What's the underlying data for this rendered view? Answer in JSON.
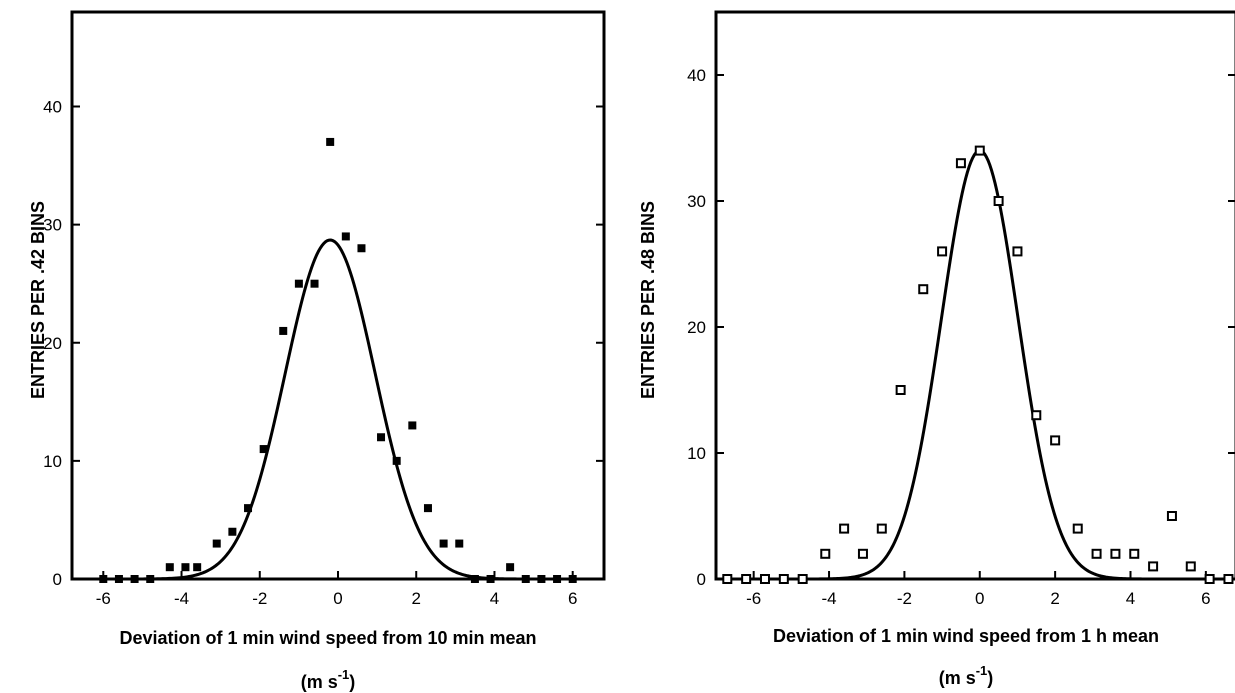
{
  "chart_data": [
    {
      "type": "scatter",
      "marker": "filled-square",
      "xlim": [
        -6.8,
        6.8
      ],
      "ylim": [
        0,
        48
      ],
      "xticks": [
        -6,
        -4,
        -2,
        0,
        2,
        4,
        6
      ],
      "yticks": [
        0,
        10,
        20,
        30,
        40
      ],
      "xtick_labels": [
        "-6",
        "-4",
        "-2",
        "0",
        "2",
        "4",
        "6"
      ],
      "ytick_labels": [
        "0",
        "10",
        "20",
        "30",
        "40"
      ],
      "ylabel": "ENTRIES PER .42 BINS",
      "xlabel": "Deviation  of  1 min wind speed from 10 min mean",
      "xlabel_unit": "(m s-1)",
      "points": [
        [
          -6.0,
          0
        ],
        [
          -5.6,
          0
        ],
        [
          -5.2,
          0
        ],
        [
          -4.8,
          0
        ],
        [
          -4.3,
          1
        ],
        [
          -3.9,
          1
        ],
        [
          -3.6,
          1
        ],
        [
          -3.1,
          3
        ],
        [
          -2.7,
          4
        ],
        [
          -2.3,
          6
        ],
        [
          -1.9,
          11
        ],
        [
          -1.4,
          21
        ],
        [
          -1.0,
          25
        ],
        [
          -0.6,
          25
        ],
        [
          -0.2,
          37
        ],
        [
          0.2,
          29
        ],
        [
          0.6,
          28
        ],
        [
          1.1,
          12
        ],
        [
          1.5,
          10
        ],
        [
          1.9,
          13
        ],
        [
          2.3,
          6
        ],
        [
          2.7,
          3
        ],
        [
          3.1,
          3
        ],
        [
          3.5,
          0
        ],
        [
          3.9,
          0
        ],
        [
          4.4,
          1
        ],
        [
          4.8,
          0
        ],
        [
          5.2,
          0
        ],
        [
          5.6,
          0
        ],
        [
          6.0,
          0
        ]
      ],
      "fit": {
        "shape": "gaussian",
        "amplitude": 28.7,
        "mean": -0.2,
        "sigma": 1.15
      }
    },
    {
      "type": "scatter",
      "marker": "open-square",
      "xlim": [
        -7.0,
        6.8
      ],
      "ylim": [
        0,
        45
      ],
      "xticks": [
        -6,
        -4,
        -2,
        0,
        2,
        4,
        6
      ],
      "yticks": [
        0,
        10,
        20,
        30,
        40
      ],
      "xtick_labels": [
        "-6",
        "-4",
        "-2",
        "0",
        "2",
        "4",
        "6"
      ],
      "ytick_labels": [
        "0",
        "10",
        "20",
        "30",
        "40"
      ],
      "ylabel": "ENTRIES PER .48 BINS",
      "xlabel": "Deviation  of  1 min wind speed from 1 h mean",
      "xlabel_unit": "(m s-1)",
      "points": [
        [
          -6.7,
          0
        ],
        [
          -6.2,
          0
        ],
        [
          -5.7,
          0
        ],
        [
          -5.2,
          0
        ],
        [
          -4.7,
          0
        ],
        [
          -4.1,
          2
        ],
        [
          -3.6,
          4
        ],
        [
          -3.1,
          2
        ],
        [
          -2.6,
          4
        ],
        [
          -2.1,
          15
        ],
        [
          -1.5,
          23
        ],
        [
          -1.0,
          26
        ],
        [
          -0.5,
          33
        ],
        [
          0.0,
          34
        ],
        [
          0.5,
          30
        ],
        [
          1.0,
          26
        ],
        [
          1.5,
          13
        ],
        [
          2.0,
          11
        ],
        [
          2.6,
          4
        ],
        [
          3.1,
          2
        ],
        [
          3.6,
          2
        ],
        [
          4.1,
          2
        ],
        [
          4.6,
          1
        ],
        [
          5.1,
          5
        ],
        [
          5.6,
          1
        ],
        [
          6.1,
          0
        ],
        [
          6.6,
          0
        ]
      ],
      "fit": {
        "shape": "gaussian",
        "amplitude": 34,
        "mean": 0.0,
        "sigma": 1.02
      }
    }
  ]
}
